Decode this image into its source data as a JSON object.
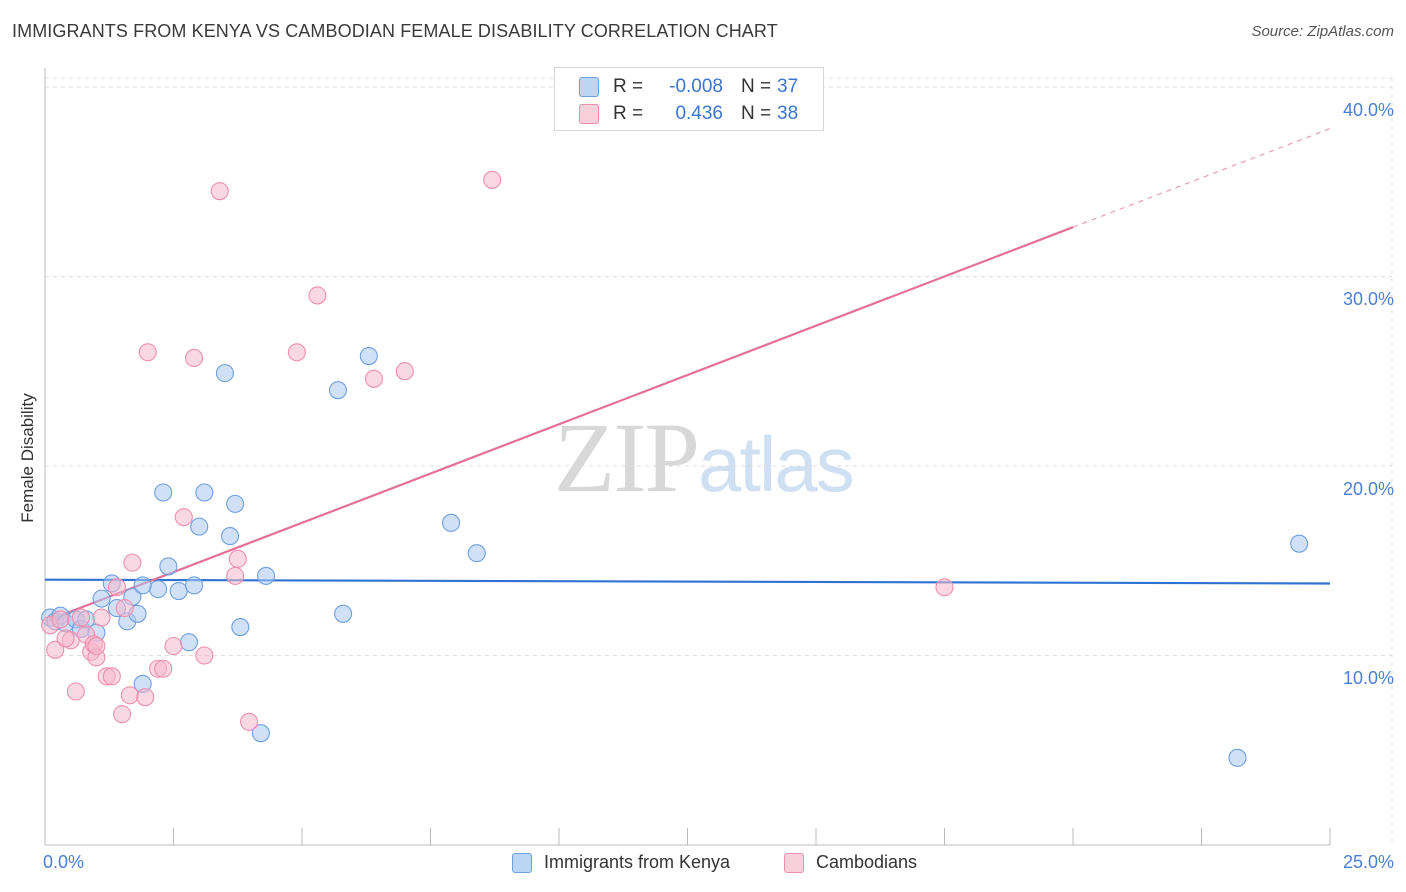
{
  "title": "IMMIGRANTS FROM KENYA VS CAMBODIAN FEMALE DISABILITY CORRELATION CHART",
  "source": "Source: ZipAtlas.com",
  "watermark": {
    "part1": "ZIP",
    "part2": "atlas"
  },
  "colors": {
    "blue_fill": "#a9c8f0",
    "blue_stroke": "#6e9fe0",
    "blue_line": "#2f73d2",
    "pink_fill": "#f6b8cc",
    "pink_stroke": "#ee8fae",
    "pink_line": "#e46f98",
    "grid": "#dddddd",
    "tick_text": "#4a7fd4"
  },
  "legend": {
    "blue": {
      "r_label": "R =",
      "r_value": "-0.008",
      "n_label": "N =",
      "n_value": "37"
    },
    "pink": {
      "r_label": "R =",
      "r_value": "0.436",
      "n_label": "N =",
      "n_value": "38"
    }
  },
  "chart_data": {
    "type": "scatter",
    "title": "IMMIGRANTS FROM KENYA VS CAMBODIAN FEMALE DISABILITY CORRELATION CHART",
    "xlabel": "",
    "ylabel": "Female Disability",
    "xlim": [
      0,
      25
    ],
    "ylim": [
      0,
      41
    ],
    "x_tick_labels": {
      "min": "0.0%",
      "max": "25.0%"
    },
    "y_ticks": [
      {
        "value": 10,
        "label": "10.0%"
      },
      {
        "value": 20,
        "label": "20.0%"
      },
      {
        "value": 30,
        "label": "30.0%"
      },
      {
        "value": 40,
        "label": "40.0%"
      }
    ],
    "grid": true,
    "series": [
      {
        "name": "Immigrants from Kenya",
        "color": "blue",
        "trend": {
          "x0": 0,
          "y0": 14.0,
          "x1": 25,
          "y1": 13.8
        },
        "points": [
          [
            0.1,
            12.0
          ],
          [
            0.2,
            11.8
          ],
          [
            0.3,
            12.1
          ],
          [
            0.4,
            11.7
          ],
          [
            0.6,
            11.9
          ],
          [
            0.7,
            11.4
          ],
          [
            0.8,
            11.9
          ],
          [
            1.0,
            11.2
          ],
          [
            1.1,
            13.0
          ],
          [
            1.4,
            12.5
          ],
          [
            1.6,
            11.8
          ],
          [
            1.7,
            13.1
          ],
          [
            1.8,
            12.2
          ],
          [
            1.3,
            13.8
          ],
          [
            1.9,
            8.5
          ],
          [
            2.2,
            13.5
          ],
          [
            2.4,
            14.7
          ],
          [
            2.6,
            13.4
          ],
          [
            2.8,
            10.7
          ],
          [
            2.9,
            13.7
          ],
          [
            2.3,
            18.6
          ],
          [
            3.0,
            16.8
          ],
          [
            3.1,
            18.6
          ],
          [
            3.5,
            24.9
          ],
          [
            3.6,
            16.3
          ],
          [
            3.7,
            18.0
          ],
          [
            3.8,
            11.5
          ],
          [
            4.2,
            5.9
          ],
          [
            4.3,
            14.2
          ],
          [
            5.7,
            24.0
          ],
          [
            5.8,
            12.2
          ],
          [
            6.3,
            25.8
          ],
          [
            7.9,
            17.0
          ],
          [
            8.4,
            15.4
          ],
          [
            23.2,
            4.6
          ],
          [
            24.4,
            15.9
          ],
          [
            1.9,
            13.7
          ]
        ]
      },
      {
        "name": "Cambodians",
        "color": "pink",
        "trend": {
          "x0": 0,
          "y0": 11.8,
          "x1": 25,
          "y1": 37.8,
          "solid_until_x": 20
        },
        "points": [
          [
            0.1,
            11.6
          ],
          [
            0.2,
            10.3
          ],
          [
            0.3,
            11.9
          ],
          [
            0.5,
            10.8
          ],
          [
            0.6,
            8.1
          ],
          [
            0.7,
            12.0
          ],
          [
            0.8,
            11.1
          ],
          [
            0.9,
            10.2
          ],
          [
            0.95,
            10.6
          ],
          [
            1.0,
            9.9
          ],
          [
            1.1,
            12.0
          ],
          [
            1.2,
            8.9
          ],
          [
            1.3,
            8.9
          ],
          [
            1.4,
            13.6
          ],
          [
            1.5,
            6.9
          ],
          [
            1.55,
            12.5
          ],
          [
            1.65,
            7.9
          ],
          [
            1.7,
            14.9
          ],
          [
            1.95,
            7.8
          ],
          [
            2.0,
            26.0
          ],
          [
            2.2,
            9.3
          ],
          [
            2.3,
            9.3
          ],
          [
            2.5,
            10.5
          ],
          [
            2.7,
            17.3
          ],
          [
            2.9,
            25.7
          ],
          [
            3.1,
            10.0
          ],
          [
            3.4,
            34.5
          ],
          [
            3.7,
            14.2
          ],
          [
            3.75,
            15.1
          ],
          [
            3.97,
            6.5
          ],
          [
            4.9,
            26.0
          ],
          [
            5.3,
            29.0
          ],
          [
            6.4,
            24.6
          ],
          [
            7.0,
            25.0
          ],
          [
            8.7,
            35.1
          ],
          [
            17.5,
            13.6
          ],
          [
            1.0,
            10.5
          ],
          [
            0.4,
            10.9
          ]
        ]
      }
    ]
  }
}
